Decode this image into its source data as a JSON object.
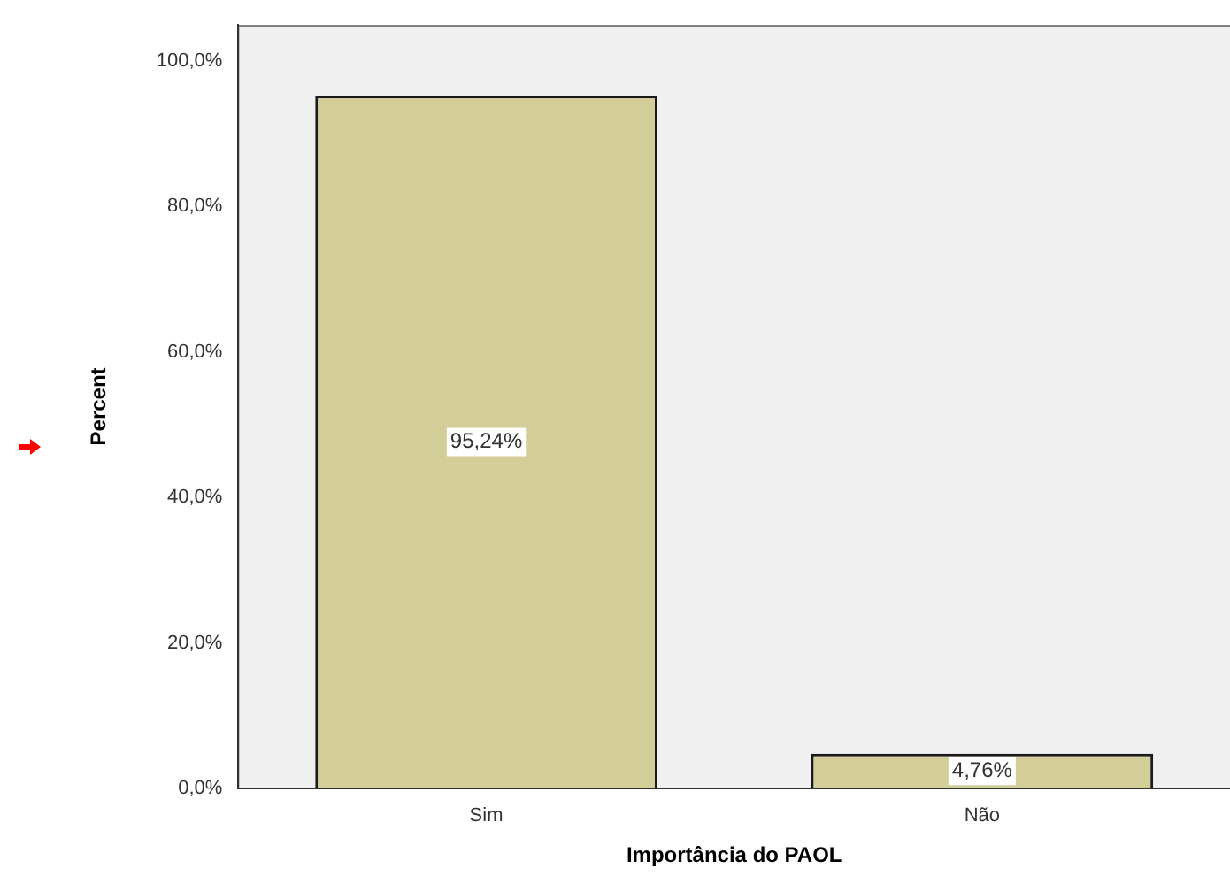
{
  "chart_data": {
    "type": "bar",
    "xlabel": "Importância do PAOL",
    "ylabel": "Percent",
    "categories": [
      "Sim",
      "Não"
    ],
    "values": [
      95.24,
      4.76
    ],
    "value_labels": [
      "95,24%",
      "4,76%"
    ],
    "color": "#d3cd97",
    "ylim": [
      0,
      105
    ],
    "yticks": [
      {
        "value": 0,
        "label": "0,0%"
      },
      {
        "value": 20,
        "label": "20,0%"
      },
      {
        "value": 40,
        "label": "40,0%"
      },
      {
        "value": 60,
        "label": "60,0%"
      },
      {
        "value": 80,
        "label": "80,0%"
      },
      {
        "value": 100,
        "label": "100,0%"
      }
    ],
    "grid": false,
    "legend": false
  }
}
